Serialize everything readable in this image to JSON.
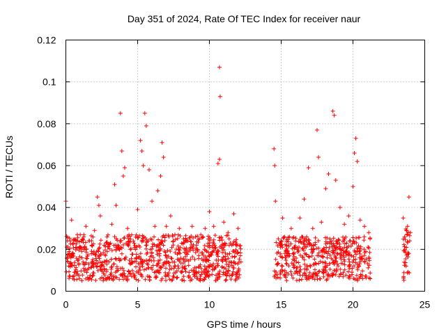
{
  "chart_data": {
    "type": "scatter",
    "title": "Day 351 of 2024, Rate Of TEC Index for receiver naur",
    "xlabel": "GPS time / hours",
    "ylabel": "ROTI / TECUs",
    "xlim": [
      0,
      25
    ],
    "ylim": [
      0,
      0.12
    ],
    "xticks": [
      "0",
      "5",
      "10",
      "15",
      "20",
      "25"
    ],
    "yticks": [
      "0",
      "0.02",
      "0.04",
      "0.06",
      "0.08",
      "0.1",
      "0.12"
    ],
    "grid": true,
    "marker": "+",
    "colors": {
      "points": "#ff0000",
      "grid": "#a0a0a0",
      "axes": "#000000"
    },
    "series": [
      {
        "points": [
          [
            0.0,
            0.043
          ],
          [
            0.1,
            0.016
          ],
          [
            0.2,
            0.012
          ],
          [
            0.3,
            0.024
          ],
          [
            0.4,
            0.034
          ],
          [
            0.5,
            0.018
          ],
          [
            0.6,
            0.009
          ],
          [
            0.8,
            0.027
          ],
          [
            1.0,
            0.021
          ],
          [
            1.2,
            0.014
          ],
          [
            1.4,
            0.031
          ],
          [
            1.6,
            0.013
          ],
          [
            1.8,
            0.022
          ],
          [
            2.0,
            0.029
          ],
          [
            2.2,
            0.045
          ],
          [
            2.3,
            0.041
          ],
          [
            2.4,
            0.036
          ],
          [
            2.6,
            0.012
          ],
          [
            2.8,
            0.023
          ],
          [
            3.0,
            0.014
          ],
          [
            3.2,
            0.032
          ],
          [
            3.4,
            0.051
          ],
          [
            3.5,
            0.041
          ],
          [
            3.8,
            0.085
          ],
          [
            3.9,
            0.067
          ],
          [
            4.0,
            0.055
          ],
          [
            4.1,
            0.059
          ],
          [
            4.3,
            0.03
          ],
          [
            4.5,
            0.02
          ],
          [
            4.7,
            0.024
          ],
          [
            4.9,
            0.016
          ],
          [
            5.0,
            0.039
          ],
          [
            5.2,
            0.072
          ],
          [
            5.3,
            0.067
          ],
          [
            5.4,
            0.06
          ],
          [
            5.5,
            0.085
          ],
          [
            5.6,
            0.079
          ],
          [
            5.8,
            0.058
          ],
          [
            6.0,
            0.043
          ],
          [
            6.2,
            0.031
          ],
          [
            6.4,
            0.048
          ],
          [
            6.6,
            0.055
          ],
          [
            6.7,
            0.071
          ],
          [
            6.8,
            0.064
          ],
          [
            7.0,
            0.031
          ],
          [
            7.3,
            0.036
          ],
          [
            7.6,
            0.027
          ],
          [
            7.9,
            0.03
          ],
          [
            8.2,
            0.025
          ],
          [
            8.5,
            0.024
          ],
          [
            8.8,
            0.031
          ],
          [
            9.1,
            0.022
          ],
          [
            9.4,
            0.027
          ],
          [
            9.7,
            0.03
          ],
          [
            10.0,
            0.038
          ],
          [
            10.3,
            0.031
          ],
          [
            10.6,
            0.061
          ],
          [
            10.7,
            0.107
          ],
          [
            10.75,
            0.093
          ],
          [
            10.7,
            0.063
          ],
          [
            11.0,
            0.033
          ],
          [
            11.3,
            0.028
          ],
          [
            11.7,
            0.037
          ],
          [
            12.0,
            0.03
          ],
          [
            12.2,
            0.014
          ],
          [
            14.5,
            0.068
          ],
          [
            14.55,
            0.06
          ],
          [
            14.6,
            0.043
          ],
          [
            14.8,
            0.025
          ],
          [
            15.1,
            0.035
          ],
          [
            15.4,
            0.022
          ],
          [
            15.7,
            0.03
          ],
          [
            16.0,
            0.024
          ],
          [
            16.3,
            0.035
          ],
          [
            16.6,
            0.044
          ],
          [
            16.9,
            0.059
          ],
          [
            17.2,
            0.03
          ],
          [
            17.5,
            0.077
          ],
          [
            17.6,
            0.064
          ],
          [
            17.8,
            0.033
          ],
          [
            18.1,
            0.049
          ],
          [
            18.3,
            0.056
          ],
          [
            18.6,
            0.086
          ],
          [
            18.7,
            0.084
          ],
          [
            18.8,
            0.053
          ],
          [
            19.1,
            0.04
          ],
          [
            19.4,
            0.032
          ],
          [
            19.7,
            0.036
          ],
          [
            20.0,
            0.05
          ],
          [
            20.1,
            0.066
          ],
          [
            20.2,
            0.073
          ],
          [
            20.3,
            0.062
          ],
          [
            20.5,
            0.034
          ],
          [
            20.8,
            0.031
          ],
          [
            21.1,
            0.028
          ],
          [
            21.2,
            0.006
          ],
          [
            23.5,
            0.035
          ],
          [
            23.6,
            0.026
          ],
          [
            23.7,
            0.012
          ],
          [
            23.8,
            0.031
          ],
          [
            23.9,
            0.045
          ],
          [
            24.0,
            0.028
          ]
        ]
      }
    ],
    "bands": [
      {
        "x": [
          0.0,
          12.2
        ],
        "y": [
          0.005,
          0.027
        ]
      },
      {
        "x": [
          14.5,
          21.2
        ],
        "y": [
          0.005,
          0.026
        ]
      },
      {
        "x": [
          23.5,
          24.0
        ],
        "y": [
          0.005,
          0.03
        ]
      }
    ]
  }
}
